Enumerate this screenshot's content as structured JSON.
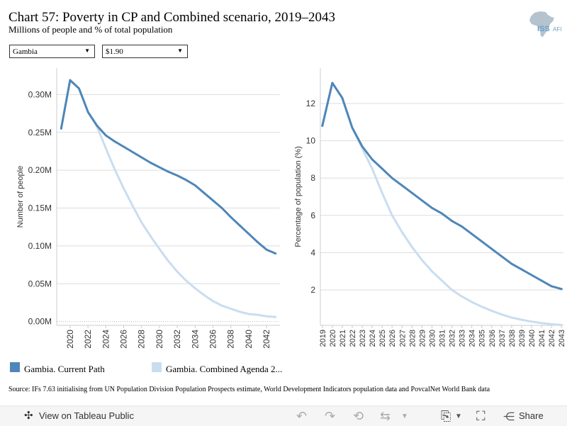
{
  "header": {
    "title": "Chart 57: Poverty in CP and Combined scenario, 2019–2043",
    "subtitle": "Millions of people and % of total population"
  },
  "logo": {
    "text": "ISS",
    "suffix": "AFI"
  },
  "filters": {
    "country": "Gambia",
    "poverty_line": "$1.90"
  },
  "colors": {
    "current_path": "#4e86b9",
    "combined": "#c9ddef"
  },
  "legend": [
    {
      "label": "Gambia. Current Path",
      "color": "#4e86b9"
    },
    {
      "label": "Gambia. Combined Agenda 2...",
      "color": "#c9ddef"
    }
  ],
  "source": "Source: IFs 7.63 initialising from UN Population Division Population Prospects estimate, World Development Indicators population data and PovcalNet World Bank data",
  "toolbar": {
    "view_label": "View on Tableau Public",
    "share_label": "Share"
  },
  "chart_data": [
    {
      "type": "line",
      "ylabel": "Number of people",
      "xlabel": "",
      "ylim": [
        -0.005,
        0.335
      ],
      "yticks": [
        0.0,
        0.05,
        0.1,
        0.15,
        0.2,
        0.25,
        0.3
      ],
      "ytick_labels": [
        "0.00M",
        "0.05M",
        "0.10M",
        "0.15M",
        "0.20M",
        "0.25M",
        "0.30M"
      ],
      "xticks": [
        2020,
        2022,
        2024,
        2026,
        2028,
        2030,
        2032,
        2034,
        2036,
        2038,
        2040,
        2042
      ],
      "x": [
        2019,
        2020,
        2021,
        2022,
        2023,
        2024,
        2025,
        2026,
        2027,
        2028,
        2029,
        2030,
        2031,
        2032,
        2033,
        2034,
        2035,
        2036,
        2037,
        2038,
        2039,
        2040,
        2041,
        2042,
        2043
      ],
      "grid": true,
      "series": [
        {
          "name": "Gambia. Current Path",
          "values": [
            0.255,
            0.319,
            0.308,
            0.277,
            0.259,
            0.246,
            0.238,
            0.231,
            0.224,
            0.217,
            0.21,
            0.204,
            0.198,
            0.193,
            0.187,
            0.18,
            0.17,
            0.16,
            0.15,
            0.138,
            0.127,
            0.116,
            0.105,
            0.095,
            0.09
          ]
        },
        {
          "name": "Gambia. Combined Agenda 2...",
          "values": [
            0.255,
            0.319,
            0.308,
            0.277,
            0.258,
            0.229,
            0.201,
            0.176,
            0.153,
            0.131,
            0.113,
            0.096,
            0.08,
            0.066,
            0.054,
            0.044,
            0.035,
            0.027,
            0.021,
            0.017,
            0.013,
            0.01,
            0.009,
            0.007,
            0.006
          ]
        }
      ]
    },
    {
      "type": "line",
      "ylabel": "Percentage of population (%)",
      "xlabel": "",
      "ylim": [
        0.1,
        13.9
      ],
      "yticks": [
        2,
        4,
        6,
        8,
        10,
        12
      ],
      "ytick_labels": [
        "2",
        "4",
        "6",
        "8",
        "10",
        "12"
      ],
      "xticks": [
        2019,
        2020,
        2021,
        2022,
        2023,
        2024,
        2025,
        2026,
        2027,
        2028,
        2029,
        2030,
        2031,
        2032,
        2033,
        2034,
        2035,
        2036,
        2037,
        2038,
        2039,
        2040,
        2041,
        2042,
        2043
      ],
      "x": [
        2019,
        2020,
        2021,
        2022,
        2023,
        2024,
        2025,
        2026,
        2027,
        2028,
        2029,
        2030,
        2031,
        2032,
        2033,
        2034,
        2035,
        2036,
        2037,
        2038,
        2039,
        2040,
        2041,
        2042,
        2043
      ],
      "grid": true,
      "series": [
        {
          "name": "Gambia. Current Path",
          "values": [
            10.8,
            13.1,
            12.3,
            10.7,
            9.7,
            9.0,
            8.5,
            8.0,
            7.6,
            7.2,
            6.8,
            6.4,
            6.1,
            5.7,
            5.4,
            5.0,
            4.6,
            4.2,
            3.8,
            3.4,
            3.1,
            2.8,
            2.5,
            2.2,
            2.05
          ]
        },
        {
          "name": "Gambia. Combined Agenda 2...",
          "values": [
            10.8,
            13.1,
            12.3,
            10.7,
            9.6,
            8.5,
            7.2,
            6.0,
            5.1,
            4.3,
            3.6,
            3.0,
            2.5,
            2.0,
            1.65,
            1.35,
            1.1,
            0.88,
            0.68,
            0.52,
            0.4,
            0.3,
            0.22,
            0.16,
            0.12
          ]
        }
      ]
    }
  ]
}
